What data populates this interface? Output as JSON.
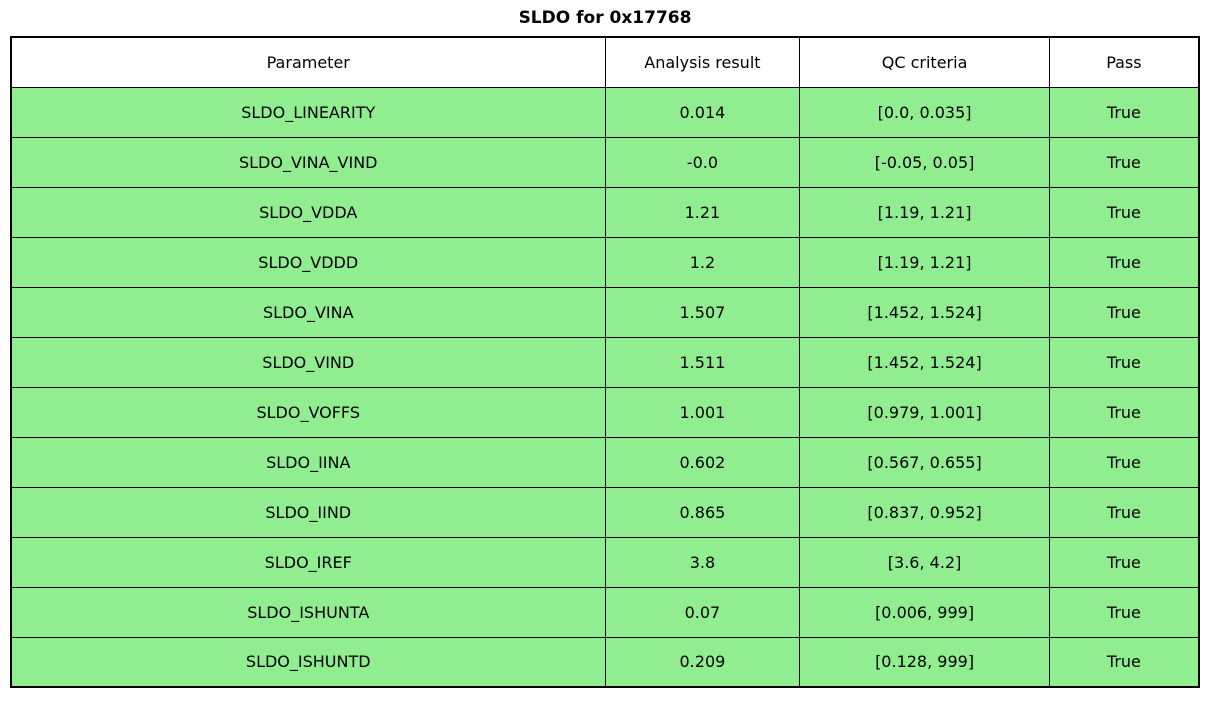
{
  "colors": {
    "row_pass": "#90ee90",
    "header_bg": "#ffffff",
    "border": "#000000"
  },
  "chart_data": {
    "type": "table",
    "title": "SLDO for 0x17768",
    "columns": [
      "Parameter",
      "Analysis result",
      "QC criteria",
      "Pass"
    ],
    "rows": [
      [
        "SLDO_LINEARITY",
        "0.014",
        "[0.0, 0.035]",
        "True"
      ],
      [
        "SLDO_VINA_VIND",
        "-0.0",
        "[-0.05, 0.05]",
        "True"
      ],
      [
        "SLDO_VDDA",
        "1.21",
        "[1.19, 1.21]",
        "True"
      ],
      [
        "SLDO_VDDD",
        "1.2",
        "[1.19, 1.21]",
        "True"
      ],
      [
        "SLDO_VINA",
        "1.507",
        "[1.452, 1.524]",
        "True"
      ],
      [
        "SLDO_VIND",
        "1.511",
        "[1.452, 1.524]",
        "True"
      ],
      [
        "SLDO_VOFFS",
        "1.001",
        "[0.979, 1.001]",
        "True"
      ],
      [
        "SLDO_IINA",
        "0.602",
        "[0.567, 0.655]",
        "True"
      ],
      [
        "SLDO_IIND",
        "0.865",
        "[0.837, 0.952]",
        "True"
      ],
      [
        "SLDO_IREF",
        "3.8",
        "[3.6, 4.2]",
        "True"
      ],
      [
        "SLDO_ISHUNTA",
        "0.07",
        "[0.006, 999]",
        "True"
      ],
      [
        "SLDO_ISHUNTD",
        "0.209",
        "[0.128, 999]",
        "True"
      ]
    ],
    "layout": {
      "grid": true,
      "all_rows_pass": true,
      "row_fill_color": "#90ee90"
    }
  }
}
